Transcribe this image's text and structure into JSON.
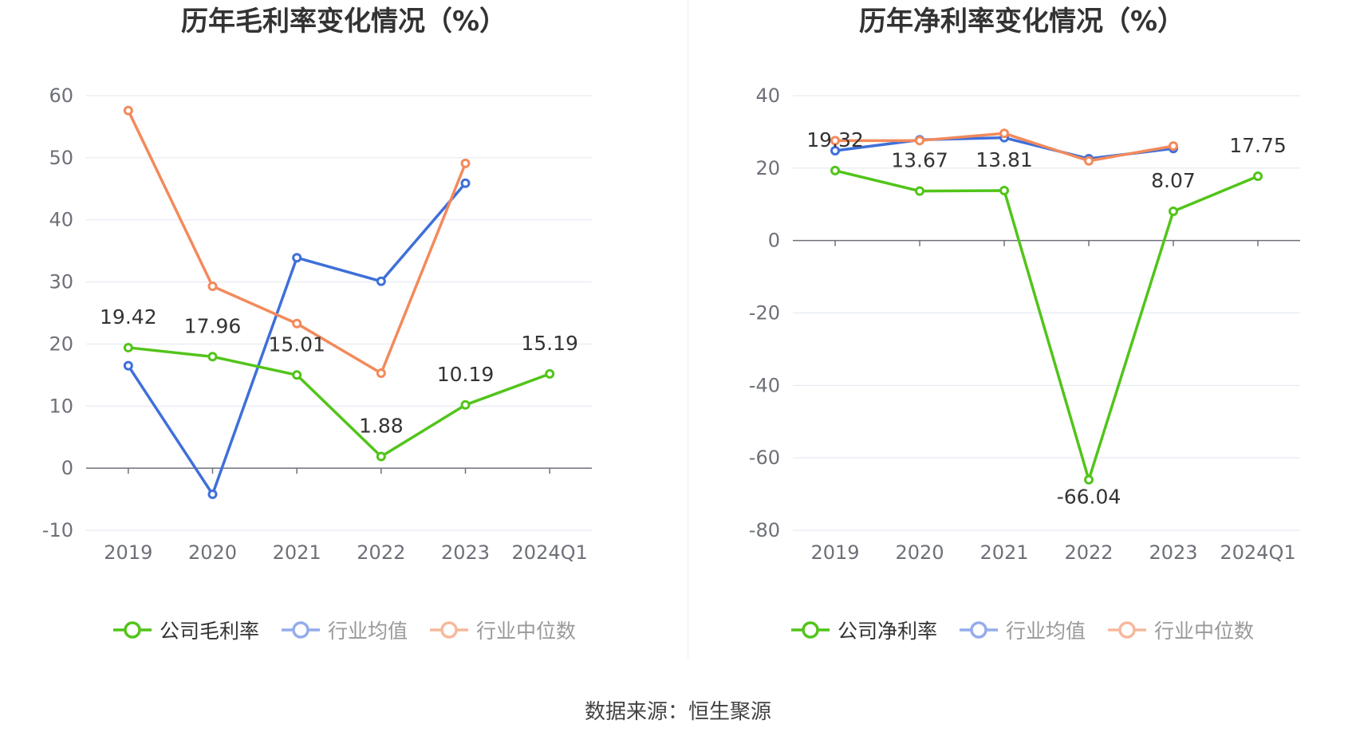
{
  "source_label": "数据来源：恒生聚源",
  "chart_data": [
    {
      "type": "line",
      "title": "历年毛利率变化情况（%）",
      "categories": [
        "2019",
        "2020",
        "2021",
        "2022",
        "2023",
        "2024Q1"
      ],
      "yticks": [
        -10,
        0,
        10,
        20,
        30,
        40,
        50,
        60
      ],
      "ylim": [
        -10,
        60
      ],
      "grid": true,
      "legend_position": "bottom",
      "series": [
        {
          "name": "公司毛利率",
          "color": "#52c41a",
          "values": [
            19.42,
            17.96,
            15.01,
            1.88,
            10.19,
            15.19
          ],
          "labels": [
            "19.42",
            "17.96",
            "15.01",
            "1.88",
            "10.19",
            "15.19"
          ]
        },
        {
          "name": "行业均值",
          "color": "#3f6fd9",
          "values": [
            16.5,
            -4.2,
            33.9,
            30.1,
            45.9,
            null
          ]
        },
        {
          "name": "行业中位数",
          "color": "#f28a5c",
          "values": [
            57.6,
            29.3,
            23.3,
            15.3,
            49.1,
            null
          ]
        }
      ]
    },
    {
      "type": "line",
      "title": "历年净利率变化情况（%）",
      "categories": [
        "2019",
        "2020",
        "2021",
        "2022",
        "2023",
        "2024Q1"
      ],
      "yticks": [
        -80,
        -60,
        -40,
        -20,
        0,
        20,
        40
      ],
      "ylim": [
        -80,
        40
      ],
      "grid": true,
      "legend_position": "bottom",
      "series": [
        {
          "name": "公司净利率",
          "color": "#52c41a",
          "values": [
            19.32,
            13.67,
            13.81,
            -66.04,
            8.07,
            17.75
          ],
          "labels": [
            "19.32",
            "13.67",
            "13.81",
            "-66.04",
            "8.07",
            "17.75"
          ]
        },
        {
          "name": "行业均值",
          "color": "#3f6fd9",
          "values": [
            24.8,
            27.8,
            28.4,
            22.6,
            25.4,
            null
          ]
        },
        {
          "name": "行业中位数",
          "color": "#f28a5c",
          "values": [
            27.6,
            27.6,
            29.6,
            22.0,
            26.1,
            null
          ]
        }
      ]
    }
  ]
}
